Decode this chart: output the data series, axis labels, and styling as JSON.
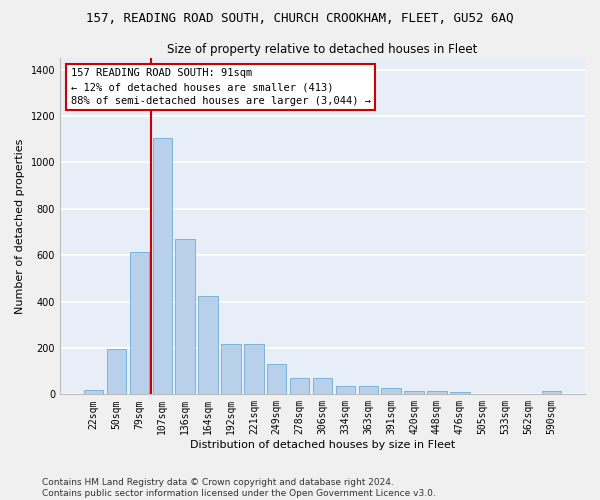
{
  "title": "157, READING ROAD SOUTH, CHURCH CROOKHAM, FLEET, GU52 6AQ",
  "subtitle": "Size of property relative to detached houses in Fleet",
  "xlabel": "Distribution of detached houses by size in Fleet",
  "ylabel": "Number of detached properties",
  "footer": "Contains HM Land Registry data © Crown copyright and database right 2024.\nContains public sector information licensed under the Open Government Licence v3.0.",
  "categories": [
    "22sqm",
    "50sqm",
    "79sqm",
    "107sqm",
    "136sqm",
    "164sqm",
    "192sqm",
    "221sqm",
    "249sqm",
    "278sqm",
    "306sqm",
    "334sqm",
    "363sqm",
    "391sqm",
    "420sqm",
    "448sqm",
    "476sqm",
    "505sqm",
    "533sqm",
    "562sqm",
    "590sqm"
  ],
  "values": [
    20,
    195,
    615,
    1105,
    670,
    425,
    215,
    215,
    130,
    72,
    72,
    35,
    35,
    27,
    14,
    14,
    10,
    0,
    0,
    0,
    15
  ],
  "bar_color": "#b8d0ea",
  "bar_edge_color": "#6baed6",
  "annotation_text_line1": "157 READING ROAD SOUTH: 91sqm",
  "annotation_text_line2": "← 12% of detached houses are smaller (413)",
  "annotation_text_line3": "88% of semi-detached houses are larger (3,044) →",
  "annotation_box_facecolor": "#ffffff",
  "annotation_box_edgecolor": "#cc0000",
  "annotation_line_color": "#cc0000",
  "ylim": [
    0,
    1450
  ],
  "yticks": [
    0,
    200,
    400,
    600,
    800,
    1000,
    1200,
    1400
  ],
  "bg_color": "#e8eef8",
  "grid_color": "#ffffff",
  "fig_facecolor": "#f0f0f0",
  "title_fontsize": 9,
  "subtitle_fontsize": 8.5,
  "xlabel_fontsize": 8,
  "ylabel_fontsize": 8,
  "tick_fontsize": 7,
  "annotation_fontsize": 7.5,
  "footer_fontsize": 6.5
}
